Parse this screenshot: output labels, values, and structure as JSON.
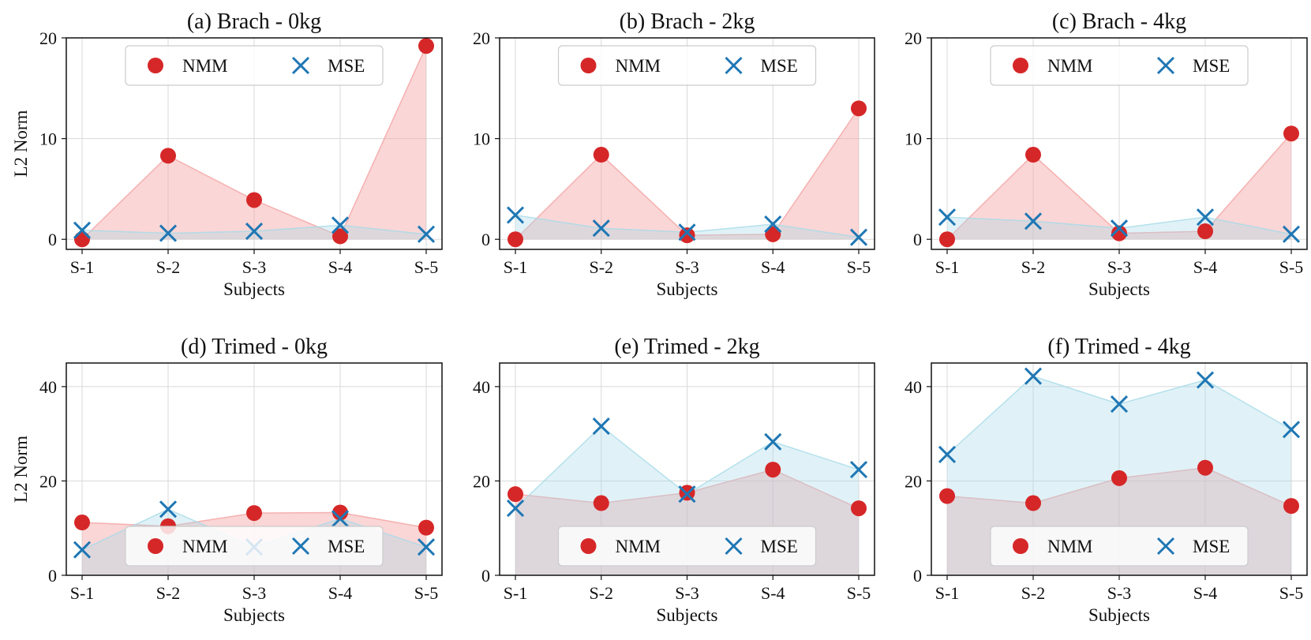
{
  "colors": {
    "nmm": "#d62728",
    "mse": "#1f77b4",
    "nmm_fill": "#f4a3a3",
    "mse_fill": "#a6dbe8",
    "grid": "#d9d9d9"
  },
  "chart_data": [
    {
      "id": "a",
      "type": "scatter",
      "title": "(a) Brach - 0kg",
      "xlabel": "Subjects",
      "ylabel": "L2 Norm",
      "categories": [
        "S-1",
        "S-2",
        "S-3",
        "S-4",
        "S-5"
      ],
      "ylim": [
        -1,
        20
      ],
      "yticks": [
        0,
        10,
        20
      ],
      "grid": true,
      "legend": {
        "position": "upper-center",
        "entries": [
          "NMM",
          "MSE"
        ]
      },
      "series": [
        {
          "name": "NMM",
          "marker": "circle",
          "values": [
            0.0,
            8.3,
            3.9,
            0.3,
            19.2
          ]
        },
        {
          "name": "MSE",
          "marker": "x",
          "values": [
            0.9,
            0.6,
            0.8,
            1.4,
            0.5
          ]
        }
      ]
    },
    {
      "id": "b",
      "type": "scatter",
      "title": "(b) Brach - 2kg",
      "xlabel": "Subjects",
      "ylabel": "",
      "categories": [
        "S-1",
        "S-2",
        "S-3",
        "S-4",
        "S-5"
      ],
      "ylim": [
        -1,
        20
      ],
      "yticks": [
        0,
        10,
        20
      ],
      "grid": true,
      "legend": {
        "position": "upper-center",
        "entries": [
          "NMM",
          "MSE"
        ]
      },
      "series": [
        {
          "name": "NMM",
          "marker": "circle",
          "values": [
            0.0,
            8.4,
            0.4,
            0.5,
            13.0
          ]
        },
        {
          "name": "MSE",
          "marker": "x",
          "values": [
            2.4,
            1.1,
            0.7,
            1.5,
            0.2
          ]
        }
      ]
    },
    {
      "id": "c",
      "type": "scatter",
      "title": "(c) Brach - 4kg",
      "xlabel": "Subjects",
      "ylabel": "",
      "categories": [
        "S-1",
        "S-2",
        "S-3",
        "S-4",
        "S-5"
      ],
      "ylim": [
        -1,
        20
      ],
      "yticks": [
        0,
        10,
        20
      ],
      "grid": true,
      "legend": {
        "position": "upper-center",
        "entries": [
          "NMM",
          "MSE"
        ]
      },
      "series": [
        {
          "name": "NMM",
          "marker": "circle",
          "values": [
            0.0,
            8.4,
            0.6,
            0.8,
            10.5
          ]
        },
        {
          "name": "MSE",
          "marker": "x",
          "values": [
            2.2,
            1.8,
            1.1,
            2.2,
            0.5
          ]
        }
      ]
    },
    {
      "id": "d",
      "type": "scatter",
      "title": "(d) Trimed - 0kg",
      "xlabel": "Subjects",
      "ylabel": "L2 Norm",
      "categories": [
        "S-1",
        "S-2",
        "S-3",
        "S-4",
        "S-5"
      ],
      "ylim": [
        0,
        45
      ],
      "yticks": [
        0,
        20,
        40
      ],
      "grid": true,
      "legend": {
        "position": "lower-center",
        "entries": [
          "NMM",
          "MSE"
        ]
      },
      "series": [
        {
          "name": "NMM",
          "marker": "circle",
          "values": [
            11.2,
            10.4,
            13.2,
            13.3,
            10.1
          ]
        },
        {
          "name": "MSE",
          "marker": "x",
          "values": [
            5.4,
            14.0,
            6.0,
            12.0,
            6.0
          ]
        }
      ]
    },
    {
      "id": "e",
      "type": "scatter",
      "title": "(e) Trimed - 2kg",
      "xlabel": "Subjects",
      "ylabel": "",
      "categories": [
        "S-1",
        "S-2",
        "S-3",
        "S-4",
        "S-5"
      ],
      "ylim": [
        0,
        45
      ],
      "yticks": [
        0,
        20,
        40
      ],
      "grid": true,
      "legend": {
        "position": "lower-center",
        "entries": [
          "NMM",
          "MSE"
        ]
      },
      "series": [
        {
          "name": "NMM",
          "marker": "circle",
          "values": [
            17.2,
            15.3,
            17.5,
            22.4,
            14.2
          ]
        },
        {
          "name": "MSE",
          "marker": "x",
          "values": [
            14.2,
            31.6,
            17.2,
            28.3,
            22.4
          ]
        }
      ]
    },
    {
      "id": "f",
      "type": "scatter",
      "title": "(f) Trimed - 4kg",
      "xlabel": "Subjects",
      "ylabel": "",
      "categories": [
        "S-1",
        "S-2",
        "S-3",
        "S-4",
        "S-5"
      ],
      "ylim": [
        0,
        45
      ],
      "yticks": [
        0,
        20,
        40
      ],
      "grid": true,
      "legend": {
        "position": "lower-center",
        "entries": [
          "NMM",
          "MSE"
        ]
      },
      "series": [
        {
          "name": "NMM",
          "marker": "circle",
          "values": [
            16.8,
            15.3,
            20.6,
            22.8,
            14.7
          ]
        },
        {
          "name": "MSE",
          "marker": "x",
          "values": [
            25.6,
            42.2,
            36.3,
            41.4,
            30.9
          ]
        }
      ]
    }
  ]
}
